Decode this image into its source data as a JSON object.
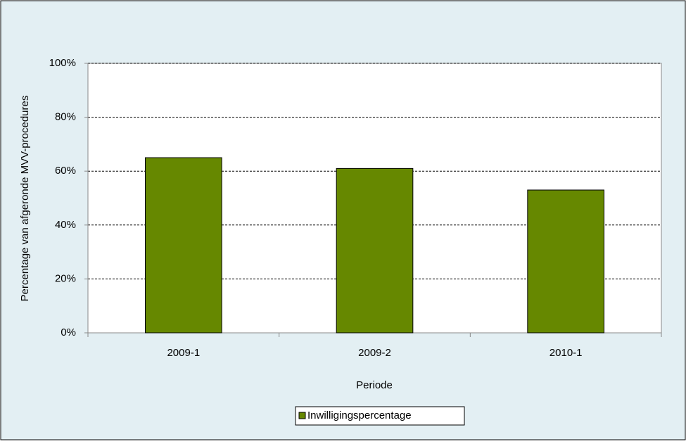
{
  "chart_data": {
    "type": "bar",
    "x_label": "Periode",
    "y_label": "Percentage van afgeronde MVV-procedures",
    "categories": [
      "2009-1",
      "2009-2",
      "2010-1"
    ],
    "series": [
      {
        "name": "Inwilligingspercentage",
        "color": "#668800",
        "values": [
          65,
          61,
          53
        ]
      }
    ],
    "ylim": [
      0,
      100
    ],
    "yticks": [
      {
        "value": 0,
        "label": "0%"
      },
      {
        "value": 20,
        "label": "20%"
      },
      {
        "value": 40,
        "label": "40%"
      },
      {
        "value": 60,
        "label": "60%"
      },
      {
        "value": 80,
        "label": "80%"
      },
      {
        "value": 100,
        "label": "100%"
      }
    ],
    "grid": true,
    "legend": "bottom"
  }
}
